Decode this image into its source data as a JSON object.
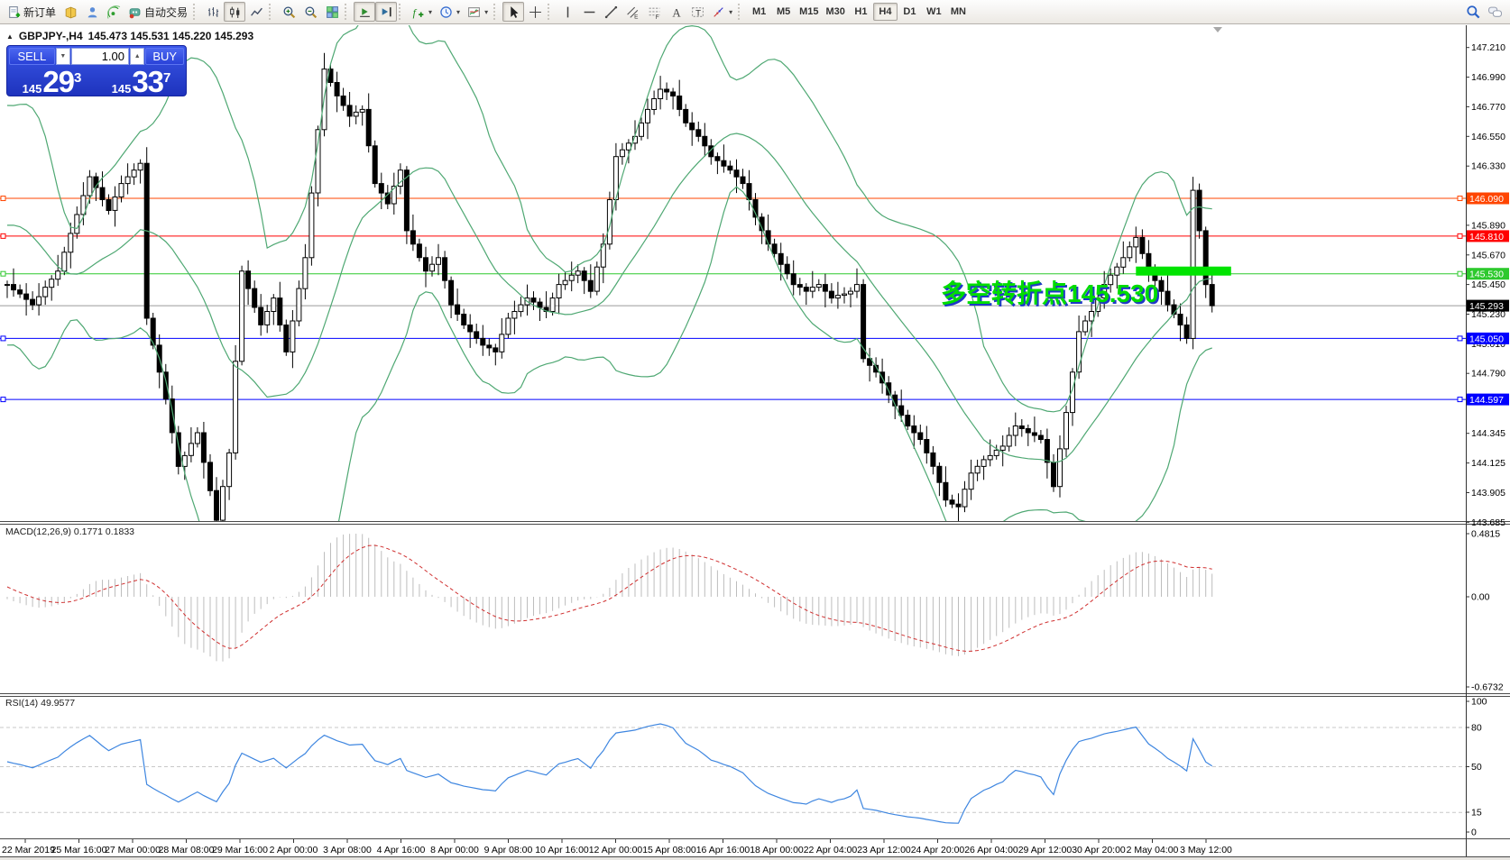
{
  "toolbar": {
    "caret": "▾",
    "new_order_label": "新订单",
    "autotrading_label": "自动交易",
    "timeframes": [
      "M1",
      "M5",
      "M15",
      "M30",
      "H1",
      "H4",
      "D1",
      "W1",
      "MN"
    ],
    "active_timeframe": "H4"
  },
  "chart": {
    "collapse_icon": "▲",
    "title": "GBPJPY-,H4",
    "ohlc_text": "145.473 145.531 145.220 145.293"
  },
  "trade_panel": {
    "sell_label": "SELL",
    "buy_label": "BUY",
    "volume": "1.00",
    "spin_down": "▼",
    "spin_up": "▲",
    "sell_price_prefix": "145",
    "sell_price_big": "29",
    "sell_price_sup": "3",
    "buy_price_prefix": "145",
    "buy_price_big": "33",
    "buy_price_sup": "7"
  },
  "annotation": {
    "text": "多空转折点145.530",
    "color": "#00DC00",
    "shadow": "#2038C8"
  },
  "hlines": [
    {
      "label": "146.090",
      "price": 146.09,
      "color": "#FF4500"
    },
    {
      "label": "145.810",
      "price": 145.81,
      "color": "#FF0000"
    },
    {
      "label": "145.530",
      "price": 145.53,
      "color": "#2DC92D"
    },
    {
      "label": "145.050",
      "price": 145.05,
      "color": "#0000FF"
    },
    {
      "label": "144.597",
      "price": 144.597,
      "color": "#0000FF"
    }
  ],
  "price_axis": {
    "ticks": [
      "147.210",
      "146.990",
      "146.770",
      "146.550",
      "146.330",
      "145.890",
      "145.670",
      "145.450",
      "145.230",
      "145.010",
      "144.790",
      "144.345",
      "144.125",
      "143.905",
      "143.685"
    ],
    "current": {
      "value": "145.293",
      "label_bg": "#000000",
      "line_color": "#9a9a9a"
    }
  },
  "time_axis": [
    "22 Mar 2019",
    "25 Mar 16:00",
    "27 Mar 00:00",
    "28 Mar 08:00",
    "29 Mar 16:00",
    "2 Apr 00:00",
    "3 Apr 08:00",
    "4 Apr 16:00",
    "8 Apr 00:00",
    "9 Apr 08:00",
    "10 Apr 16:00",
    "12 Apr 00:00",
    "15 Apr 08:00",
    "16 Apr 16:00",
    "18 Apr 00:00",
    "22 Apr 04:00",
    "23 Apr 12:00",
    "24 Apr 20:00",
    "26 Apr 04:00",
    "29 Apr 12:00",
    "30 Apr 20:00",
    "2 May 04:00",
    "3 May 12:00"
  ],
  "macd": {
    "name": "MACD(12,26,9)",
    "values": "0.1771 0.1833",
    "axis": [
      "0.4815",
      "0.00",
      "-0.6732"
    ]
  },
  "rsi": {
    "name": "RSI(14)",
    "value": "49.9577",
    "axis": [
      "100",
      "80",
      "50",
      "15",
      "0"
    ],
    "levels": [
      80,
      50,
      15
    ]
  },
  "colors": {
    "bollinger": "#4FA873",
    "macd_hist": "#BDBDBD",
    "macd_signal": "#D03030",
    "rsi_line": "#3E86E0",
    "candle_up": "#FFFFFF",
    "candle_down": "#000000",
    "highlight_green": "#00E400",
    "trade_panel_blue": "#2B46D6"
  },
  "chart_data": {
    "type": "candlestick",
    "symbol": "GBPJPY-",
    "timeframe": "H4",
    "title": "GBPJPY-,H4",
    "open_display": "145.473",
    "high_display": "145.531",
    "low_display": "145.220",
    "close_display": "145.293",
    "price_range": [
      143.685,
      147.21
    ],
    "x_range": [
      "22 Mar 2019",
      "3 May 12:00"
    ],
    "indicators": {
      "bollinger": {
        "period": 20,
        "deviation": 2
      },
      "macd": {
        "fast": 12,
        "slow": 26,
        "signal": 9,
        "display": "0.1771 0.1833"
      },
      "rsi": {
        "period": 14,
        "display": "49.9577"
      }
    },
    "highlight": {
      "price": 145.55,
      "start_bar": 178,
      "end_bar": 193,
      "color": "#00E400"
    },
    "bollinger_seed": [
      145.2,
      145.4,
      145.6,
      145.9,
      146.2,
      146.4,
      146.6,
      146.7,
      146.6,
      146.4,
      146.2,
      146.0,
      145.8,
      145.6,
      145.5,
      145.45,
      145.5,
      145.55,
      145.5,
      145.45
    ],
    "closes": [
      145.45,
      145.41,
      145.38,
      145.34,
      145.3,
      145.36,
      145.43,
      145.49,
      145.55,
      145.69,
      145.83,
      145.97,
      146.11,
      146.25,
      146.17,
      146.08,
      146.0,
      146.1,
      146.2,
      146.25,
      146.3,
      146.35,
      145.2,
      145.0,
      144.8,
      144.6,
      144.35,
      144.1,
      144.18,
      144.27,
      144.35,
      144.13,
      143.92,
      143.7,
      143.95,
      144.2,
      144.88,
      145.55,
      145.42,
      145.28,
      145.15,
      145.25,
      145.35,
      145.15,
      144.95,
      145.18,
      145.42,
      145.65,
      146.13,
      146.6,
      147.05,
      146.95,
      146.85,
      146.78,
      146.7,
      146.73,
      146.75,
      146.48,
      146.2,
      146.13,
      146.05,
      146.18,
      146.3,
      145.85,
      145.75,
      145.65,
      145.55,
      145.6,
      145.65,
      145.48,
      145.3,
      145.23,
      145.15,
      145.1,
      145.05,
      145.0,
      144.98,
      144.95,
      145.08,
      145.2,
      145.25,
      145.3,
      145.35,
      145.32,
      145.28,
      145.25,
      145.35,
      145.45,
      145.48,
      145.52,
      145.55,
      145.48,
      145.4,
      145.58,
      145.75,
      146.08,
      146.4,
      146.45,
      146.5,
      146.55,
      146.65,
      146.75,
      146.83,
      146.9,
      146.88,
      146.85,
      146.75,
      146.65,
      146.6,
      146.55,
      146.48,
      146.4,
      146.37,
      146.33,
      146.3,
      146.25,
      146.2,
      146.08,
      145.95,
      145.85,
      145.75,
      145.68,
      145.6,
      145.53,
      145.45,
      145.43,
      145.4,
      145.43,
      145.45,
      145.4,
      145.35,
      145.37,
      145.38,
      145.4,
      145.45,
      144.9,
      144.85,
      144.8,
      144.72,
      144.63,
      144.55,
      144.48,
      144.4,
      144.35,
      144.3,
      144.2,
      144.1,
      143.98,
      143.85,
      143.82,
      143.8,
      143.93,
      144.05,
      144.1,
      144.15,
      144.18,
      144.22,
      144.25,
      144.33,
      144.4,
      144.38,
      144.35,
      144.33,
      144.3,
      144.13,
      143.95,
      144.23,
      144.5,
      144.8,
      145.1,
      145.18,
      145.25,
      145.35,
      145.45,
      145.52,
      145.58,
      145.65,
      145.73,
      145.8,
      145.68,
      145.55,
      145.48,
      145.4,
      145.3,
      145.23,
      145.15,
      145.05,
      146.15,
      145.85,
      145.45,
      145.293
    ]
  }
}
